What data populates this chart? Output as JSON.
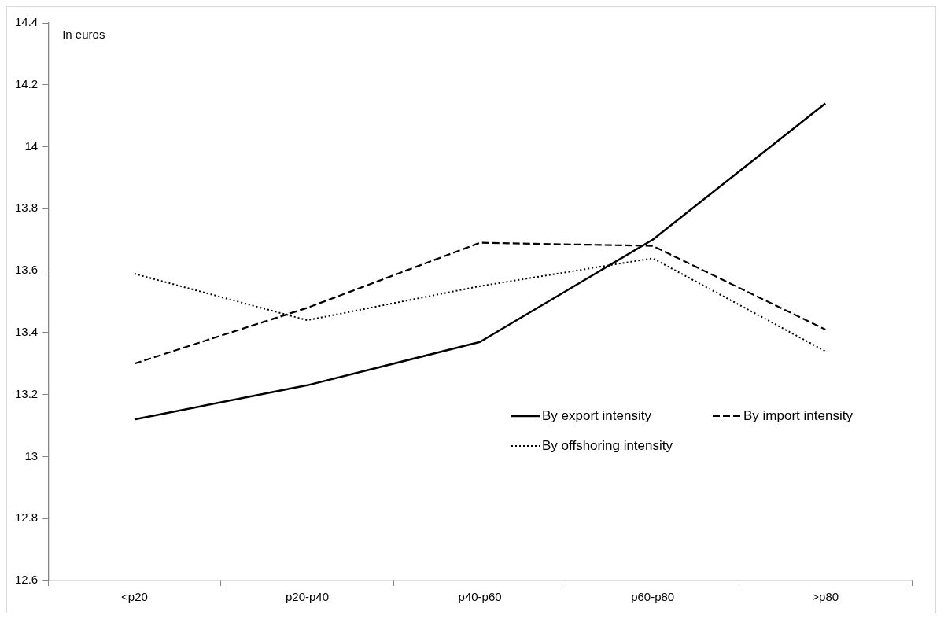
{
  "chart_data": {
    "type": "line",
    "ylabel": "In euros",
    "categories": [
      "<p20",
      "p20-p40",
      "p40-p60",
      "p60-p80",
      ">p80"
    ],
    "series": [
      {
        "name": "By export intensity",
        "color": "#000000",
        "line_style": "solid",
        "values": [
          13.12,
          13.23,
          13.37,
          13.7,
          14.14
        ]
      },
      {
        "name": "By import intensity",
        "color": "#000000",
        "line_style": "dashed",
        "values": [
          13.3,
          13.48,
          13.69,
          13.68,
          13.41
        ]
      },
      {
        "name": "By offshoring intensity",
        "color": "#000000",
        "line_style": "dotted",
        "values": [
          13.59,
          13.44,
          13.55,
          13.64,
          13.34
        ]
      }
    ],
    "ylim": [
      12.6,
      14.4
    ],
    "yticks": [
      12.6,
      12.8,
      13,
      13.2,
      13.4,
      13.6,
      13.8,
      14,
      14.2,
      14.4
    ],
    "grid": false,
    "legend": "bottom right",
    "marker": "none"
  }
}
